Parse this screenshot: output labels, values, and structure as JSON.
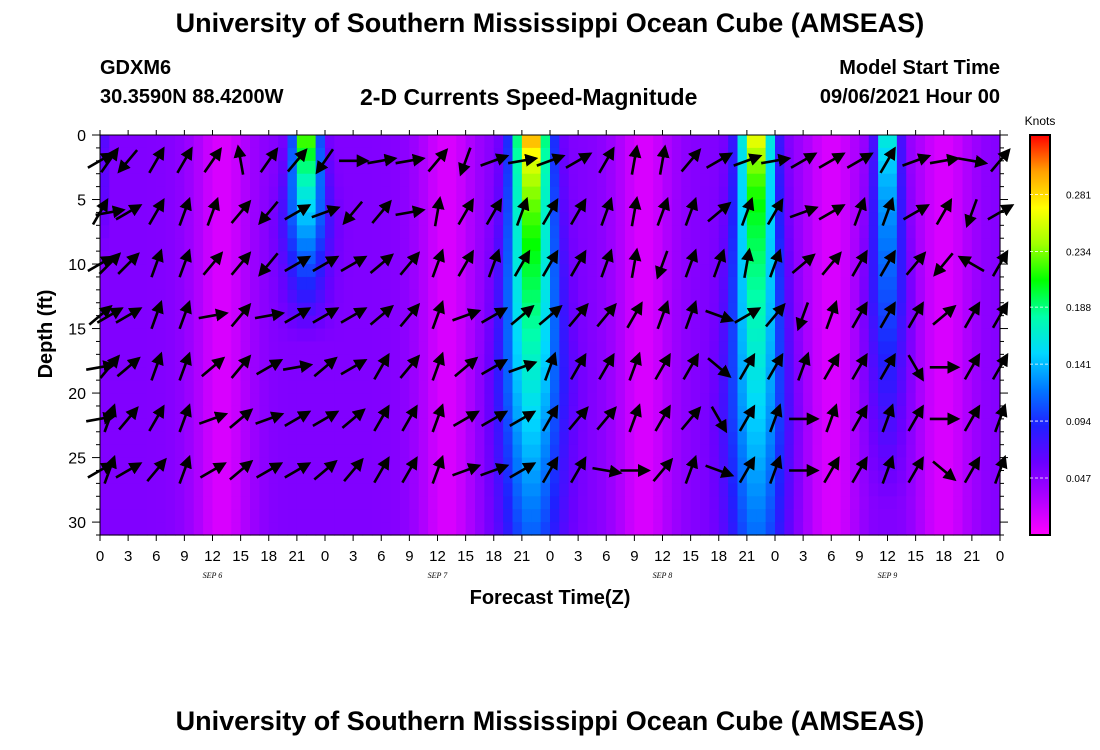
{
  "header": {
    "title": "University of Southern Mississippi Ocean Cube (AMSEAS)",
    "station": "GDXM6",
    "coords": "30.3590N  88.4200W",
    "subtitle": "2-D Currents Speed-Magnitude",
    "start_label": "Model Start Time",
    "start_value": "09/06/2021 Hour 00"
  },
  "footer": {
    "title": "University of Southern Mississippi Ocean Cube (AMSEAS)"
  },
  "colors": {
    "scale": [
      "#ff00ff",
      "#b000ff",
      "#6a00ff",
      "#2020ff",
      "#0078ff",
      "#00d8ff",
      "#00ffaa",
      "#00ff00",
      "#a0ff00",
      "#ffff00",
      "#ffa000",
      "#ff0000"
    ]
  },
  "chart_data": {
    "type": "heatmap",
    "xlabel": "Forecast Time(Z)",
    "ylabel": "Depth (ft)",
    "xlim": [
      0,
      96
    ],
    "ylim": [
      0,
      31
    ],
    "x_tick_labels": [
      "0",
      "3",
      "6",
      "9",
      "12",
      "15",
      "18",
      "21",
      "0",
      "3",
      "6",
      "9",
      "12",
      "15",
      "18",
      "21",
      "0",
      "3",
      "6",
      "9",
      "12",
      "15",
      "18",
      "21",
      "0",
      "3",
      "6",
      "9",
      "12",
      "15",
      "18",
      "21",
      "0"
    ],
    "y_ticks": [
      0,
      5,
      10,
      15,
      20,
      25,
      30
    ],
    "day_labels": [
      {
        "label": "SEP 6",
        "hour": 12
      },
      {
        "label": "SEP 7",
        "hour": 36
      },
      {
        "label": "SEP 8",
        "hour": 60
      },
      {
        "label": "SEP 9",
        "hour": 84
      }
    ],
    "colorbar": {
      "title": "Knots",
      "ticks": [
        "0.047",
        "0.094",
        "0.141",
        "0.188",
        "0.234",
        "0.281"
      ],
      "tick_values": [
        0.047,
        0.094,
        0.141,
        0.188,
        0.234,
        0.281
      ],
      "range": [
        0,
        0.33
      ]
    },
    "speed_peaks": [
      {
        "hour": 0,
        "max": 0.14,
        "halfwidth": 0.5,
        "depth": 6
      },
      {
        "hour": 22,
        "max": 0.26,
        "halfwidth": 2.2,
        "depth": 10
      },
      {
        "hour": 46,
        "max": 0.32,
        "halfwidth": 3.2,
        "depth": 28
      },
      {
        "hour": 70,
        "max": 0.29,
        "halfwidth": 3.0,
        "depth": 31
      },
      {
        "hour": 84,
        "max": 0.19,
        "halfwidth": 2.0,
        "depth": 18
      }
    ],
    "speed_min": 0.01,
    "speed_ambient": 0.05,
    "arrow_hours": [
      0,
      1,
      3,
      6,
      9,
      12,
      15,
      18,
      21,
      24,
      27,
      30,
      33,
      36,
      39,
      42,
      45,
      48,
      51,
      54,
      57,
      60,
      63,
      66,
      69,
      72,
      75,
      78,
      81,
      84,
      87,
      90,
      93,
      96
    ],
    "arrow_depths": [
      2,
      6,
      10,
      14,
      18,
      22,
      26
    ],
    "directions_deg": [
      [
        60,
        35,
        220,
        30,
        30,
        35,
        350,
        35,
        40,
        215,
        90,
        80,
        80,
        40,
        200,
        70,
        80,
        70,
        60,
        30,
        10,
        10,
        40,
        60,
        70,
        80,
        60,
        60,
        60,
        30,
        70,
        80,
        100,
        40
      ],
      [
        30,
        80,
        60,
        30,
        20,
        20,
        40,
        220,
        60,
        70,
        220,
        40,
        80,
        10,
        30,
        30,
        20,
        30,
        30,
        20,
        10,
        20,
        20,
        50,
        20,
        30,
        70,
        60,
        20,
        20,
        60,
        30,
        200,
        60
      ],
      [
        60,
        45,
        45,
        20,
        20,
        40,
        40,
        220,
        60,
        60,
        60,
        50,
        40,
        20,
        30,
        20,
        30,
        30,
        30,
        20,
        10,
        200,
        20,
        20,
        10,
        20,
        50,
        40,
        30,
        30,
        40,
        220,
        300,
        30
      ],
      [
        50,
        60,
        60,
        20,
        20,
        80,
        40,
        80,
        60,
        60,
        60,
        50,
        40,
        20,
        70,
        60,
        50,
        50,
        40,
        40,
        30,
        20,
        20,
        110,
        60,
        40,
        200,
        20,
        30,
        30,
        30,
        50,
        30,
        30
      ],
      [
        80,
        40,
        50,
        20,
        20,
        50,
        40,
        60,
        80,
        50,
        60,
        30,
        40,
        20,
        50,
        60,
        70,
        20,
        30,
        30,
        20,
        30,
        30,
        130,
        30,
        30,
        20,
        30,
        30,
        30,
        150,
        90,
        30,
        30
      ],
      [
        80,
        20,
        40,
        30,
        20,
        70,
        50,
        70,
        60,
        60,
        50,
        30,
        30,
        20,
        60,
        60,
        60,
        30,
        40,
        40,
        20,
        30,
        40,
        150,
        30,
        20,
        90,
        20,
        30,
        20,
        30,
        90,
        30,
        20
      ],
      [
        60,
        20,
        60,
        40,
        20,
        60,
        50,
        60,
        60,
        50,
        40,
        30,
        30,
        20,
        70,
        70,
        60,
        30,
        30,
        100,
        90,
        40,
        20,
        110,
        30,
        20,
        90,
        30,
        30,
        20,
        30,
        130,
        30,
        20
      ]
    ]
  }
}
